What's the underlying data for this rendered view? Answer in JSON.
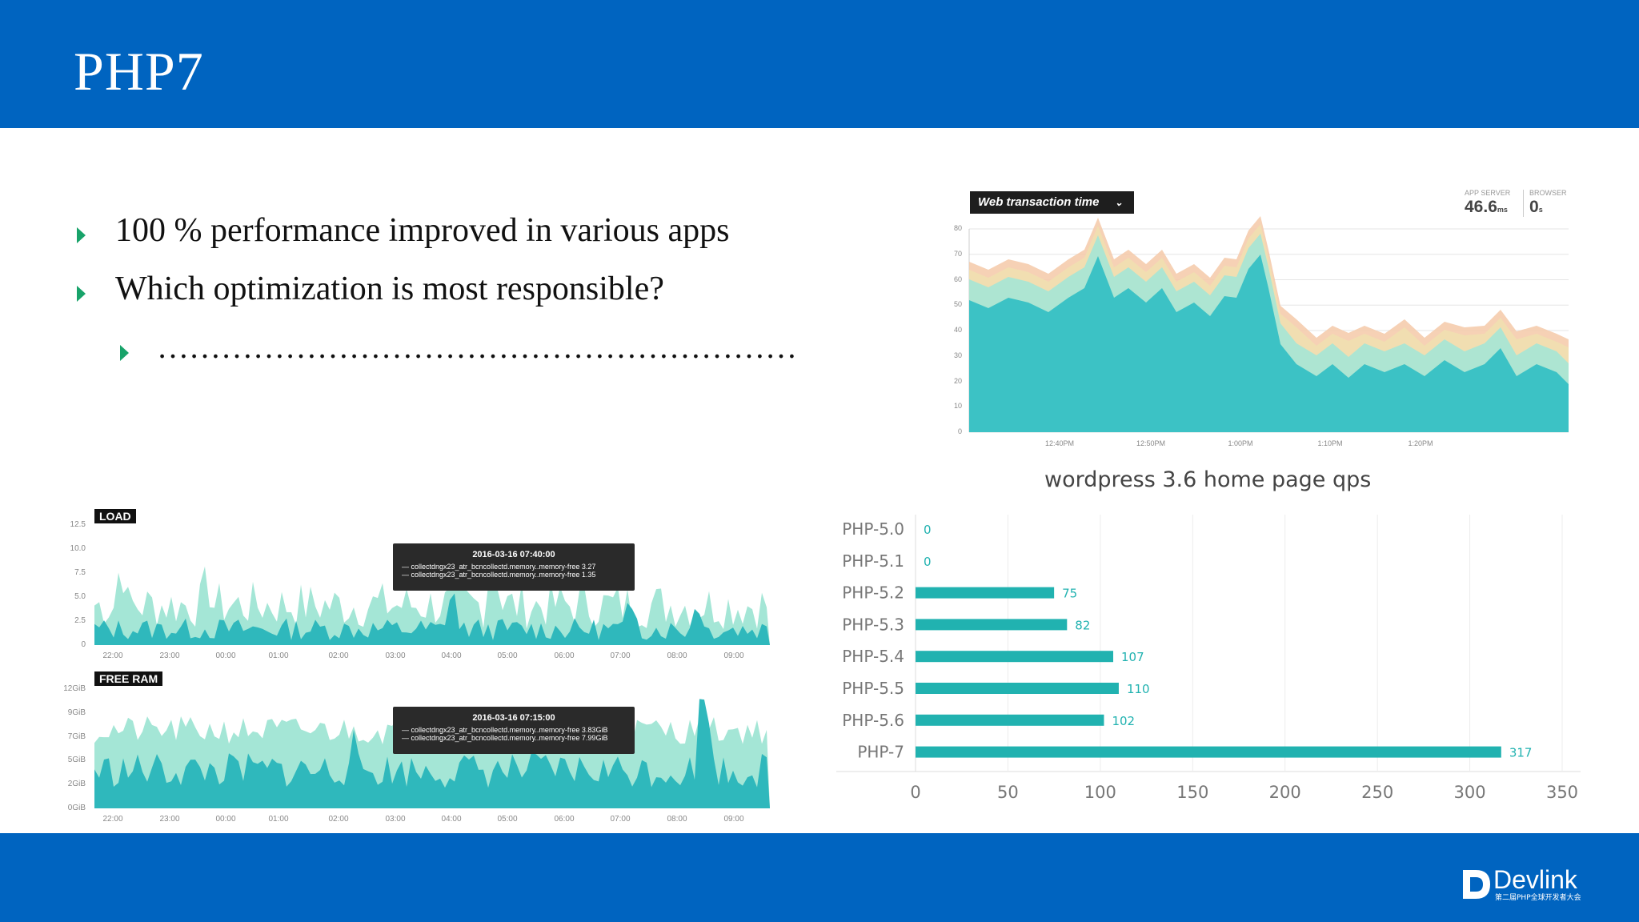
{
  "slide": {
    "title": "PHP7",
    "bullets": [
      "100 % performance improved in various apps",
      "Which optimization is most responsible?"
    ],
    "sub_bullet": "……………………………………………………",
    "brand": {
      "name": "Devlink",
      "tagline": "第二届PHP全球开发者大会"
    }
  },
  "colors": {
    "header_bg": "#0064c0",
    "bullet_arrow": "#18a36a",
    "teal": "#21b2b0",
    "light_teal": "#8ee0cf"
  },
  "web_transaction": {
    "dropdown_label": "Web transaction time",
    "app_server_label": "APP SERVER",
    "app_server_value": "46.6",
    "app_server_unit": "ms",
    "browser_label": "BROWSER",
    "browser_value": "0",
    "browser_unit": "s",
    "y_ticks": [
      "80",
      "70",
      "60",
      "50",
      "40",
      "30",
      "20",
      "10",
      "0"
    ],
    "x_ticks": [
      "12:40PM",
      "12:50PM",
      "1:00PM",
      "1:10PM",
      "1:20PM"
    ]
  },
  "load_panel": {
    "label": "LOAD",
    "y_ticks": [
      "12.5",
      "10.0",
      "7.5",
      "5.0",
      "2.5",
      "0"
    ],
    "x_ticks": [
      "22:00",
      "23:00",
      "00:00",
      "01:00",
      "02:00",
      "03:00",
      "04:00",
      "05:00",
      "06:00",
      "07:00",
      "08:00",
      "09:00"
    ],
    "tooltip_time": "2016-03-16 07:40:00",
    "tooltip_lines": [
      "— collectdngx23_atr_bcncollectd.memory..memory-free  3.27",
      "— collectdngx23_atr_bcncollectd.memory..memory-free  1.35"
    ]
  },
  "ram_panel": {
    "label": "FREE RAM",
    "y_ticks": [
      "12GiB",
      "9GiB",
      "7GiB",
      "5GiB",
      "2GiB",
      "0GiB"
    ],
    "x_ticks": [
      "22:00",
      "23:00",
      "00:00",
      "01:00",
      "02:00",
      "03:00",
      "04:00",
      "05:00",
      "06:00",
      "07:00",
      "08:00",
      "09:00"
    ],
    "tooltip_time": "2016-03-16 07:15:00",
    "tooltip_lines": [
      "— collectdngx23_atr_bcncollectd.memory..memory-free  3.83GiB",
      "— collectdngx23_atr_bcncollectd.memory..memory-free  7.99GiB"
    ]
  },
  "chart_data": {
    "type": "bar",
    "title": "wordpress 3.6 home page qps",
    "orientation": "horizontal",
    "categories": [
      "PHP-5.0",
      "PHP-5.1",
      "PHP-5.2",
      "PHP-5.3",
      "PHP-5.4",
      "PHP-5.5",
      "PHP-5.6",
      "PHP-7"
    ],
    "values": [
      0,
      0,
      75,
      82,
      107,
      110,
      102,
      317
    ],
    "xlim": [
      0,
      350
    ],
    "x_ticks": [
      0,
      50,
      100,
      150,
      200,
      250,
      300,
      350
    ],
    "grid": true,
    "color": "#21b2b0"
  }
}
